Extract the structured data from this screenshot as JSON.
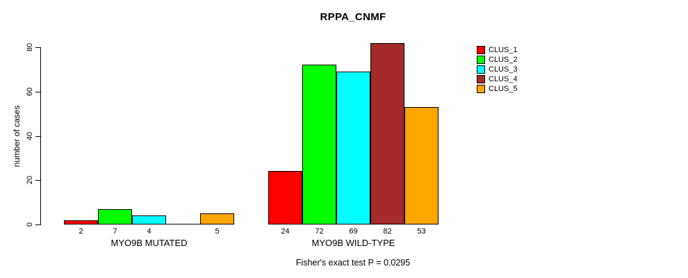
{
  "chart_data": {
    "type": "bar",
    "title": "RPPA_CNMF",
    "ylabel": "number of cases",
    "yticks": [
      0,
      20,
      40,
      60,
      80
    ],
    "ylim": [
      0,
      85
    ],
    "grid": false,
    "legend_position": "right",
    "bar_value_labels_shown": true,
    "zero_value_labels_omitted": true,
    "series": [
      {
        "name": "CLUS_1",
        "color": "#FF0000"
      },
      {
        "name": "CLUS_2",
        "color": "#00FF00"
      },
      {
        "name": "CLUS_3",
        "color": "#00FFFF"
      },
      {
        "name": "CLUS_4",
        "color": "#A52A2A"
      },
      {
        "name": "CLUS_5",
        "color": "#FFA500"
      }
    ],
    "groups": [
      {
        "label": "MYO9B MUTATED",
        "values": [
          2,
          7,
          4,
          0,
          5
        ]
      },
      {
        "label": "MYO9B WILD-TYPE",
        "values": [
          24,
          72,
          69,
          82,
          53
        ]
      }
    ],
    "annotation": "Fisher's exact test P = 0.0295"
  },
  "legend": {
    "items": [
      {
        "label": "CLUS_1",
        "color": "#FF0000"
      },
      {
        "label": "CLUS_2",
        "color": "#00FF00"
      },
      {
        "label": "CLUS_3",
        "color": "#00FFFF"
      },
      {
        "label": "CLUS_4",
        "color": "#A52A2A"
      },
      {
        "label": "CLUS_5",
        "color": "#FFA500"
      }
    ]
  }
}
